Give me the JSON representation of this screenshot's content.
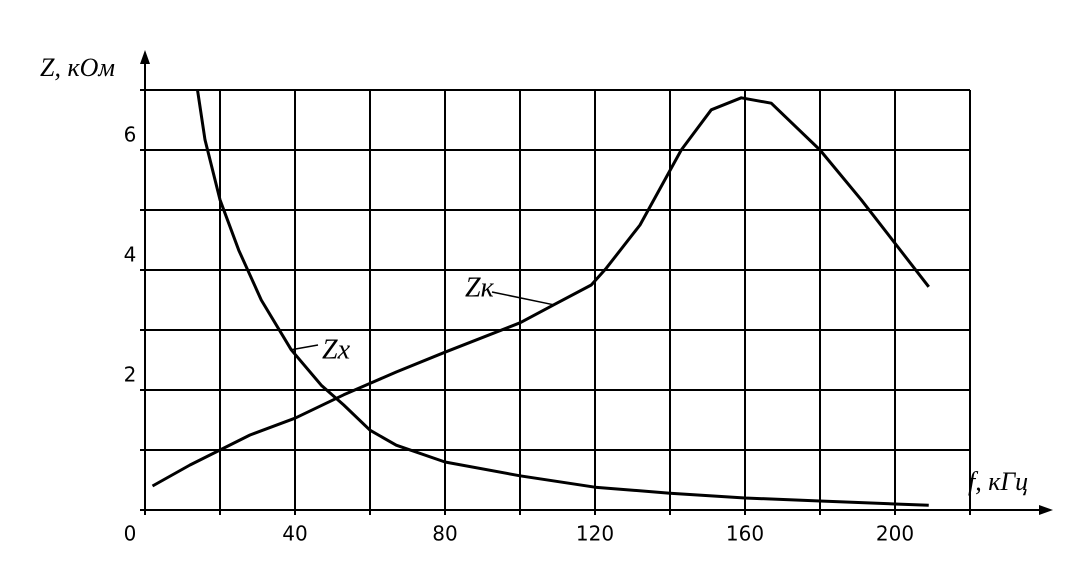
{
  "chart_data": {
    "type": "line",
    "xlabel": "f, кГц",
    "ylabel": "Z, кОм",
    "xlim": [
      0,
      220
    ],
    "ylim": [
      0,
      7
    ],
    "xticks": [
      0,
      40,
      80,
      120,
      160,
      200
    ],
    "x_minor_ticks": [
      20,
      60,
      100,
      140,
      180,
      220
    ],
    "yticks": [
      2,
      4,
      6
    ],
    "y_minor_ticks": [
      1,
      3,
      5,
      7
    ],
    "grid": true,
    "series": [
      {
        "name": "Zк",
        "color": "#000000",
        "x": [
          2,
          12,
          20,
          28,
          40,
          53,
          67,
          80,
          100,
          109,
          119,
          123,
          132,
          143,
          151,
          159,
          167,
          180,
          191,
          209
        ],
        "values": [
          0.4,
          0.75,
          1.0,
          1.25,
          1.53,
          1.92,
          2.3,
          2.63,
          3.12,
          3.42,
          3.75,
          4.03,
          4.75,
          6.0,
          6.67,
          6.87,
          6.78,
          6.0,
          5.17,
          3.72
        ]
      },
      {
        "name": "Zх",
        "color": "#000000",
        "x": [
          14,
          16,
          20,
          25,
          31,
          39,
          47,
          53,
          60,
          67,
          80,
          100,
          120,
          140,
          160,
          180,
          200,
          209
        ],
        "values": [
          7.0,
          6.17,
          5.17,
          4.33,
          3.5,
          2.67,
          2.08,
          1.75,
          1.33,
          1.08,
          0.8,
          0.57,
          0.38,
          0.28,
          0.2,
          0.15,
          0.1,
          0.08
        ]
      }
    ]
  }
}
